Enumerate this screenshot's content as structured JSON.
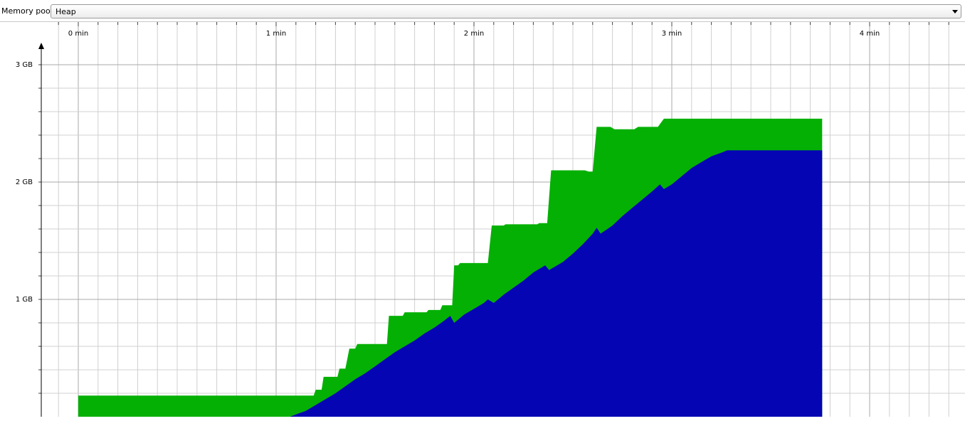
{
  "toolbar": {
    "label": "Memory pool:",
    "selected": "Heap"
  },
  "colors": {
    "committed": "#05b005",
    "used": "#0505b4",
    "grid": "#d0d0d0",
    "grid_major": "#a8a8a8",
    "axis": "#000000"
  },
  "chart_data": {
    "type": "area",
    "title": "",
    "xlabel": "",
    "ylabel": "",
    "x_unit": "min",
    "y_unit": "GB",
    "xlim": [
      -0.18,
      4.4
    ],
    "ylim": [
      0,
      3.3
    ],
    "x_ticks": [
      0,
      1,
      2,
      3,
      4
    ],
    "x_tick_labels": [
      "0 min",
      "1 min",
      "2 min",
      "3 min",
      "4 min"
    ],
    "y_ticks": [
      1,
      2,
      3
    ],
    "y_tick_labels": [
      "1 GB",
      "2 GB",
      "3 GB"
    ],
    "grid": true,
    "legend": "none",
    "series": [
      {
        "key": "committed",
        "points": [
          [
            0.0,
            0.18
          ],
          [
            1.19,
            0.18
          ],
          [
            1.2,
            0.23
          ],
          [
            1.23,
            0.23
          ],
          [
            1.24,
            0.34
          ],
          [
            1.31,
            0.34
          ],
          [
            1.32,
            0.41
          ],
          [
            1.35,
            0.41
          ],
          [
            1.37,
            0.58
          ],
          [
            1.4,
            0.58
          ],
          [
            1.41,
            0.62
          ],
          [
            1.56,
            0.62
          ],
          [
            1.57,
            0.86
          ],
          [
            1.64,
            0.86
          ],
          [
            1.65,
            0.89
          ],
          [
            1.76,
            0.89
          ],
          [
            1.77,
            0.91
          ],
          [
            1.83,
            0.91
          ],
          [
            1.84,
            0.95
          ],
          [
            1.89,
            0.95
          ],
          [
            1.9,
            1.29
          ],
          [
            1.92,
            1.29
          ],
          [
            1.93,
            1.31
          ],
          [
            2.07,
            1.31
          ],
          [
            2.09,
            1.63
          ],
          [
            2.15,
            1.63
          ],
          [
            2.16,
            1.64
          ],
          [
            2.32,
            1.64
          ],
          [
            2.33,
            1.65
          ],
          [
            2.37,
            1.65
          ],
          [
            2.39,
            2.1
          ],
          [
            2.56,
            2.1
          ],
          [
            2.58,
            2.09
          ],
          [
            2.6,
            2.09
          ],
          [
            2.62,
            2.47
          ],
          [
            2.69,
            2.47
          ],
          [
            2.71,
            2.45
          ],
          [
            2.81,
            2.45
          ],
          [
            2.83,
            2.47
          ],
          [
            2.93,
            2.47
          ],
          [
            2.96,
            2.54
          ],
          [
            3.76,
            2.54
          ]
        ]
      },
      {
        "key": "used",
        "points": [
          [
            0.0,
            0.0
          ],
          [
            1.07,
            0.0
          ],
          [
            1.1,
            0.02
          ],
          [
            1.15,
            0.05
          ],
          [
            1.2,
            0.1
          ],
          [
            1.25,
            0.15
          ],
          [
            1.3,
            0.2
          ],
          [
            1.35,
            0.26
          ],
          [
            1.4,
            0.32
          ],
          [
            1.45,
            0.37
          ],
          [
            1.5,
            0.43
          ],
          [
            1.55,
            0.49
          ],
          [
            1.6,
            0.55
          ],
          [
            1.65,
            0.6
          ],
          [
            1.7,
            0.65
          ],
          [
            1.75,
            0.71
          ],
          [
            1.8,
            0.76
          ],
          [
            1.85,
            0.82
          ],
          [
            1.88,
            0.86
          ],
          [
            1.9,
            0.8
          ],
          [
            1.95,
            0.87
          ],
          [
            2.0,
            0.92
          ],
          [
            2.05,
            0.97
          ],
          [
            2.07,
            1.0
          ],
          [
            2.1,
            0.97
          ],
          [
            2.15,
            1.04
          ],
          [
            2.2,
            1.1
          ],
          [
            2.25,
            1.16
          ],
          [
            2.3,
            1.23
          ],
          [
            2.33,
            1.26
          ],
          [
            2.36,
            1.29
          ],
          [
            2.38,
            1.25
          ],
          [
            2.45,
            1.32
          ],
          [
            2.5,
            1.39
          ],
          [
            2.55,
            1.47
          ],
          [
            2.6,
            1.56
          ],
          [
            2.62,
            1.61
          ],
          [
            2.64,
            1.56
          ],
          [
            2.7,
            1.63
          ],
          [
            2.75,
            1.71
          ],
          [
            2.8,
            1.78
          ],
          [
            2.85,
            1.85
          ],
          [
            2.9,
            1.92
          ],
          [
            2.94,
            1.98
          ],
          [
            2.96,
            1.94
          ],
          [
            3.0,
            1.98
          ],
          [
            3.05,
            2.05
          ],
          [
            3.1,
            2.12
          ],
          [
            3.15,
            2.17
          ],
          [
            3.2,
            2.22
          ],
          [
            3.25,
            2.25
          ],
          [
            3.28,
            2.27
          ],
          [
            3.76,
            2.27
          ]
        ]
      }
    ]
  }
}
